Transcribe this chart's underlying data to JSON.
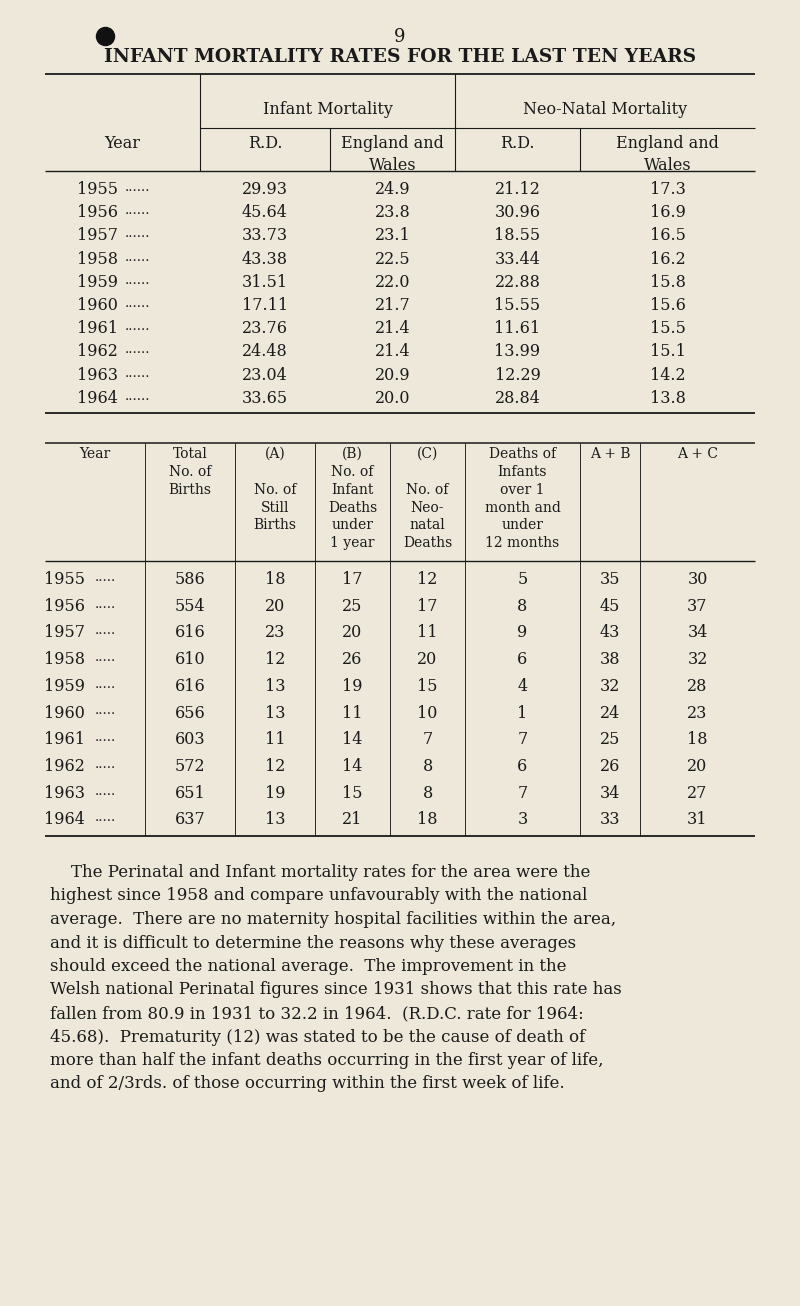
{
  "bg_color": "#ede8da",
  "text_color": "#1a1a1a",
  "page_number": "9",
  "title": "INFANT MORTALITY RATES FOR THE LAST TEN YEARS",
  "t1_rows": [
    [
      "1955",
      "29.93",
      "24.9",
      "21.12",
      "17.3"
    ],
    [
      "1956",
      "45.64",
      "23.8",
      "30.96",
      "16.9"
    ],
    [
      "1957",
      "33.73",
      "23.1",
      "18.55",
      "16.5"
    ],
    [
      "1958",
      "43.38",
      "22.5",
      "33.44",
      "16.2"
    ],
    [
      "1959",
      "31.51",
      "22.0",
      "22.88",
      "15.8"
    ],
    [
      "1960",
      "17.11",
      "21.7",
      "15.55",
      "15.6"
    ],
    [
      "1961",
      "23.76",
      "21.4",
      "11.61",
      "15.5"
    ],
    [
      "1962",
      "24.48",
      "21.4",
      "13.99",
      "15.1"
    ],
    [
      "1963",
      "23.04",
      "20.9",
      "12.29",
      "14.2"
    ],
    [
      "1964",
      "33.65",
      "20.0",
      "28.84",
      "13.8"
    ]
  ],
  "t2_rows": [
    [
      "1955",
      "586",
      "18",
      "17",
      "12",
      "5",
      "35",
      "30"
    ],
    [
      "1956",
      "554",
      "20",
      "25",
      "17",
      "8",
      "45",
      "37"
    ],
    [
      "1957",
      "616",
      "23",
      "20",
      "11",
      "9",
      "43",
      "34"
    ],
    [
      "1958",
      "610",
      "12",
      "26",
      "20",
      "6",
      "38",
      "32"
    ],
    [
      "1959",
      "616",
      "13",
      "19",
      "15",
      "4",
      "32",
      "28"
    ],
    [
      "1960",
      "656",
      "13",
      "11",
      "10",
      "1",
      "24",
      "23"
    ],
    [
      "1961",
      "603",
      "11",
      "14",
      "7",
      "7",
      "25",
      "18"
    ],
    [
      "1962",
      "572",
      "12",
      "14",
      "8",
      "6",
      "26",
      "20"
    ],
    [
      "1963",
      "651",
      "19",
      "15",
      "8",
      "7",
      "34",
      "27"
    ],
    [
      "1964",
      "637",
      "13",
      "21",
      "18",
      "3",
      "33",
      "31"
    ]
  ],
  "para_lines": [
    "    The Perinatal and Infant mortality rates for the area were the",
    "highest since 1958 and compare unfavourably with the national",
    "average.  There are no maternity hospital facilities within the area,",
    "and it is difficult to determine the reasons why these averages",
    "should exceed the national average.  The improvement in the",
    "Welsh national Perinatal figures since 1931 shows that this rate has",
    "fallen from 80.9 in 1931 to 32.2 in 1964.  (R.D.C. rate for 1964:",
    "45.68).  Prematurity (12) was stated to be the cause of death of",
    "more than half the infant deaths occurring in the first year of life,",
    "and of 2/3rds. of those occurring within the first week of life."
  ]
}
